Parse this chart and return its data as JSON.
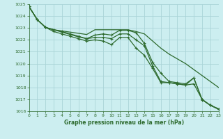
{
  "title": "Graphe pression niveau de la mer (hPa)",
  "bg_color": "#cceef0",
  "grid_color": "#aad4d8",
  "line_color": "#2d6a2d",
  "ylim": [
    1016,
    1025
  ],
  "xlim": [
    0,
    23
  ],
  "yticks": [
    1016,
    1017,
    1018,
    1019,
    1020,
    1021,
    1022,
    1023,
    1024,
    1025
  ],
  "xticks": [
    0,
    1,
    2,
    3,
    4,
    5,
    6,
    7,
    8,
    9,
    10,
    11,
    12,
    13,
    14,
    15,
    16,
    17,
    18,
    19,
    20,
    21,
    22,
    23
  ],
  "series": [
    {
      "x": [
        0,
        1,
        2,
        3,
        4,
        5,
        6,
        7,
        8,
        9,
        10,
        11,
        12,
        13,
        14,
        15,
        16,
        17,
        18,
        19,
        20,
        21,
        22,
        23
      ],
      "y": [
        1024.8,
        1023.7,
        1023.05,
        1022.85,
        1022.75,
        1022.65,
        1022.55,
        1022.45,
        1022.85,
        1022.85,
        1022.85,
        1022.85,
        1022.85,
        1022.7,
        1022.5,
        1021.9,
        1021.3,
        1020.8,
        1020.4,
        1020.0,
        1019.5,
        1019.0,
        1018.5,
        1018.0
      ],
      "marker": null,
      "lw": 0.9
    },
    {
      "x": [
        0,
        1,
        2,
        3,
        4,
        5,
        6,
        7,
        8,
        9,
        10,
        11,
        12,
        13,
        14,
        15,
        16,
        17,
        18,
        19,
        20,
        21,
        22,
        23
      ],
      "y": [
        1024.8,
        1023.7,
        1023.05,
        1022.85,
        1022.7,
        1022.5,
        1022.3,
        1022.1,
        1022.4,
        1022.5,
        1022.4,
        1022.8,
        1022.8,
        1022.6,
        1021.7,
        1020.1,
        1019.2,
        1018.5,
        1018.4,
        1018.3,
        1018.8,
        1016.95,
        1016.5,
        1016.2
      ],
      "marker": "+",
      "lw": 0.9
    },
    {
      "x": [
        0,
        1,
        2,
        3,
        4,
        5,
        6,
        7,
        8,
        9,
        10,
        11,
        12,
        13,
        14,
        15,
        16,
        17,
        18,
        19,
        20,
        21,
        22,
        23
      ],
      "y": [
        1024.8,
        1023.7,
        1023.05,
        1022.85,
        1022.65,
        1022.45,
        1022.25,
        1022.1,
        1022.2,
        1022.2,
        1022.1,
        1022.5,
        1022.5,
        1022.0,
        1021.5,
        1019.8,
        1018.5,
        1018.4,
        1018.3,
        1018.2,
        1018.3,
        1017.0,
        1016.5,
        1016.2
      ],
      "marker": "+",
      "lw": 0.9
    },
    {
      "x": [
        0,
        1,
        2,
        3,
        4,
        5,
        6,
        7,
        8,
        9,
        10,
        11,
        12,
        13,
        14,
        15,
        16,
        17,
        18,
        19,
        20,
        21,
        22,
        23
      ],
      "y": [
        1024.8,
        1023.7,
        1023.05,
        1022.7,
        1022.5,
        1022.3,
        1022.1,
        1021.9,
        1022.0,
        1021.9,
        1021.6,
        1022.2,
        1022.2,
        1021.3,
        1020.7,
        1019.6,
        1018.4,
        1018.4,
        1018.3,
        1018.2,
        1018.8,
        1017.0,
        1016.5,
        1016.15
      ],
      "marker": "+",
      "lw": 0.9
    }
  ]
}
